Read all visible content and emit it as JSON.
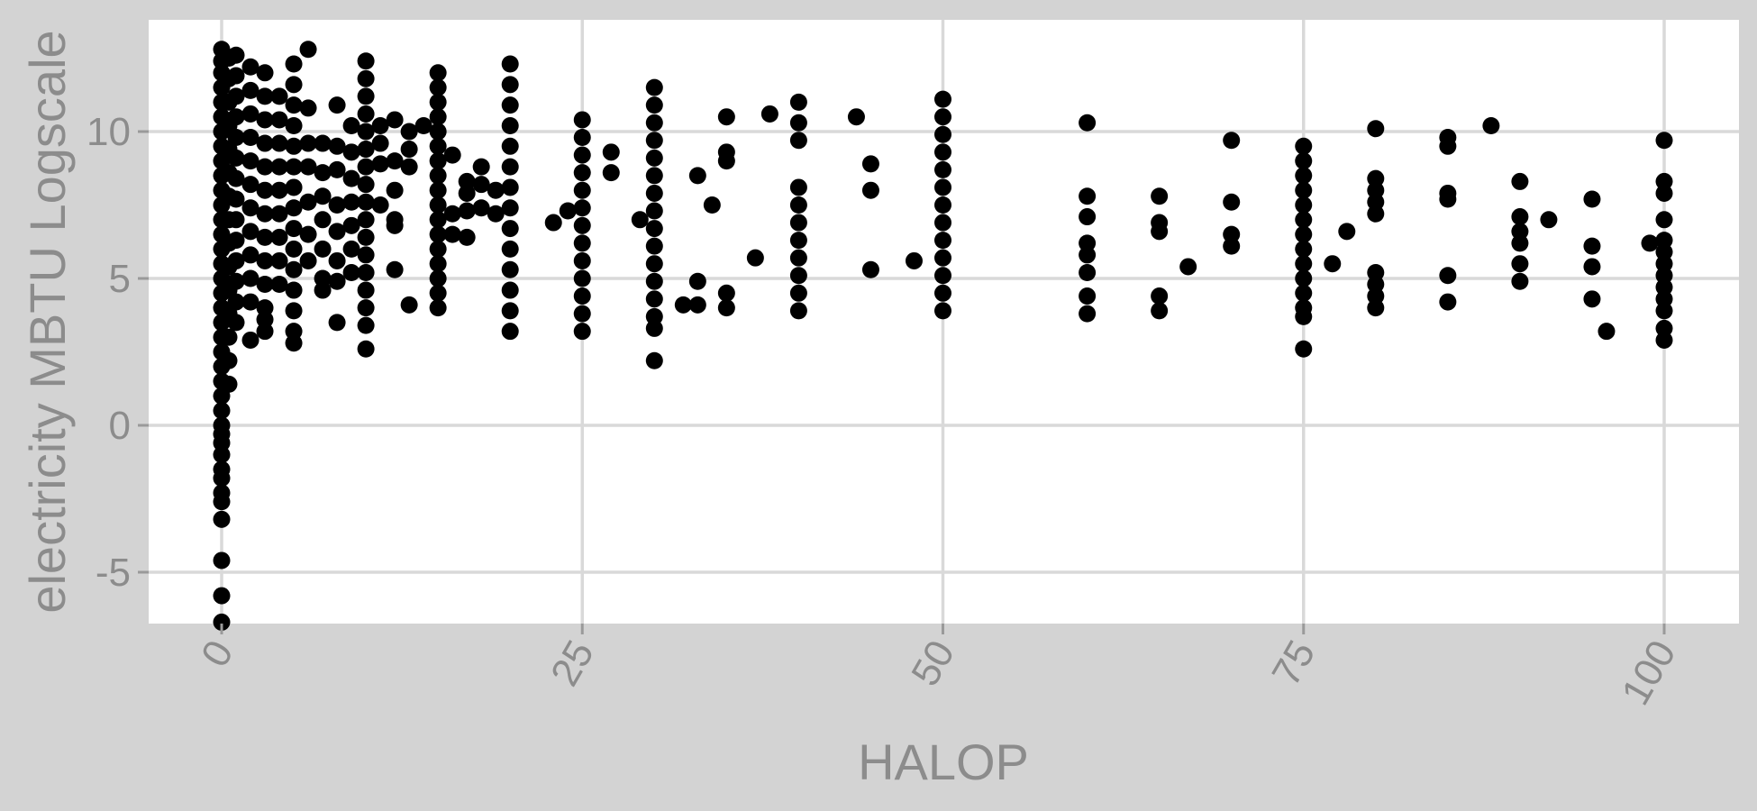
{
  "chart_data": {
    "type": "scatter",
    "title": "",
    "xlabel": "HALOP",
    "ylabel": "electricity MBTU Logscale",
    "xlim": [
      -5,
      105
    ],
    "ylim": [
      -6.8,
      13.5
    ],
    "x_ticks": [
      0,
      25,
      50,
      75,
      100
    ],
    "x_tick_labels": [
      "0",
      "25",
      "50",
      "75",
      "100"
    ],
    "y_ticks": [
      -5,
      0,
      5,
      10
    ],
    "y_tick_labels": [
      "-5",
      "0",
      "5",
      "10"
    ],
    "grid": true,
    "legend": "none",
    "colors": {
      "background": "#d3d3d3",
      "panel": "#ffffff",
      "grid": "#d9d9d9",
      "text": "#8c8c8c",
      "point": "#000000"
    },
    "points": [
      [
        0,
        12.8
      ],
      [
        0,
        12.4
      ],
      [
        0,
        12.0
      ],
      [
        0,
        11.5
      ],
      [
        0,
        11.0
      ],
      [
        0,
        10.5
      ],
      [
        0,
        10.0
      ],
      [
        0,
        9.5
      ],
      [
        0,
        9.0
      ],
      [
        0,
        8.5
      ],
      [
        0,
        8.0
      ],
      [
        0,
        7.5
      ],
      [
        0,
        7.0
      ],
      [
        0,
        6.5
      ],
      [
        0,
        6.0
      ],
      [
        0,
        5.5
      ],
      [
        0,
        5.0
      ],
      [
        0,
        4.5
      ],
      [
        0,
        4.0
      ],
      [
        0,
        3.5
      ],
      [
        0,
        3.0
      ],
      [
        0,
        2.5
      ],
      [
        0,
        2.0
      ],
      [
        0,
        1.5
      ],
      [
        0,
        1.0
      ],
      [
        0,
        0.5
      ],
      [
        0,
        0.0
      ],
      [
        0,
        -0.3
      ],
      [
        0,
        -0.6
      ],
      [
        0,
        -1.0
      ],
      [
        0,
        -1.5
      ],
      [
        0,
        -1.8
      ],
      [
        0,
        -2.3
      ],
      [
        0,
        -2.6
      ],
      [
        0,
        -3.2
      ],
      [
        0,
        -4.6
      ],
      [
        0,
        -5.8
      ],
      [
        0,
        -6.7
      ],
      [
        0.5,
        12.5
      ],
      [
        0.5,
        11.8
      ],
      [
        0.5,
        11.0
      ],
      [
        0.5,
        10.2
      ],
      [
        0.5,
        9.4
      ],
      [
        0.5,
        8.6
      ],
      [
        0.5,
        7.8
      ],
      [
        0.5,
        7.0
      ],
      [
        0.5,
        6.2
      ],
      [
        0.5,
        5.4
      ],
      [
        0.5,
        4.6
      ],
      [
        0.5,
        3.8
      ],
      [
        0.5,
        3.0
      ],
      [
        0.5,
        2.2
      ],
      [
        0.5,
        1.4
      ],
      [
        1,
        12.6
      ],
      [
        1,
        11.9
      ],
      [
        1,
        11.2
      ],
      [
        1,
        10.5
      ],
      [
        1,
        9.8
      ],
      [
        1,
        9.1
      ],
      [
        1,
        8.4
      ],
      [
        1,
        7.7
      ],
      [
        1,
        7.0
      ],
      [
        1,
        6.3
      ],
      [
        1,
        5.6
      ],
      [
        1,
        4.9
      ],
      [
        1,
        4.2
      ],
      [
        1,
        3.5
      ],
      [
        2,
        12.2
      ],
      [
        2,
        11.4
      ],
      [
        2,
        10.6
      ],
      [
        2,
        9.8
      ],
      [
        2,
        9.0
      ],
      [
        2,
        8.2
      ],
      [
        2,
        7.4
      ],
      [
        2,
        6.6
      ],
      [
        2,
        5.8
      ],
      [
        2,
        5.0
      ],
      [
        2,
        4.2
      ],
      [
        2,
        2.9
      ],
      [
        3,
        12.0
      ],
      [
        3,
        11.2
      ],
      [
        3,
        10.4
      ],
      [
        3,
        9.6
      ],
      [
        3,
        8.8
      ],
      [
        3,
        8.0
      ],
      [
        3,
        7.2
      ],
      [
        3,
        6.4
      ],
      [
        3,
        5.6
      ],
      [
        3,
        4.8
      ],
      [
        3,
        4.0
      ],
      [
        3,
        3.2
      ],
      [
        3,
        3.6
      ],
      [
        4,
        11.2
      ],
      [
        4,
        10.4
      ],
      [
        4,
        9.6
      ],
      [
        4,
        8.8
      ],
      [
        4,
        8.0
      ],
      [
        4,
        7.2
      ],
      [
        4,
        6.4
      ],
      [
        4,
        5.6
      ],
      [
        4,
        4.8
      ],
      [
        5,
        12.3
      ],
      [
        5,
        11.6
      ],
      [
        5,
        10.9
      ],
      [
        5,
        10.2
      ],
      [
        5,
        9.5
      ],
      [
        5,
        8.8
      ],
      [
        5,
        8.1
      ],
      [
        5,
        7.4
      ],
      [
        5,
        6.7
      ],
      [
        5,
        6.0
      ],
      [
        5,
        5.3
      ],
      [
        5,
        4.6
      ],
      [
        5,
        3.9
      ],
      [
        5,
        3.2
      ],
      [
        5,
        2.8
      ],
      [
        6,
        12.8
      ],
      [
        6,
        10.8
      ],
      [
        6,
        9.6
      ],
      [
        6,
        8.8
      ],
      [
        6,
        7.6
      ],
      [
        6,
        6.5
      ],
      [
        6,
        5.6
      ],
      [
        7,
        9.6
      ],
      [
        7,
        8.6
      ],
      [
        7,
        7.8
      ],
      [
        7,
        7.0
      ],
      [
        7,
        6.0
      ],
      [
        7,
        5.0
      ],
      [
        7,
        4.6
      ],
      [
        8,
        10.9
      ],
      [
        8,
        9.5
      ],
      [
        8,
        8.7
      ],
      [
        8,
        7.5
      ],
      [
        8,
        6.6
      ],
      [
        8,
        5.6
      ],
      [
        8,
        4.9
      ],
      [
        8,
        3.5
      ],
      [
        9,
        10.2
      ],
      [
        9,
        9.3
      ],
      [
        9,
        8.4
      ],
      [
        9,
        7.6
      ],
      [
        9,
        6.8
      ],
      [
        9,
        6.0
      ],
      [
        9,
        5.2
      ],
      [
        10,
        12.4
      ],
      [
        10,
        11.8
      ],
      [
        10,
        11.2
      ],
      [
        10,
        10.6
      ],
      [
        10,
        10.0
      ],
      [
        10,
        9.4
      ],
      [
        10,
        8.8
      ],
      [
        10,
        8.2
      ],
      [
        10,
        7.6
      ],
      [
        10,
        7.0
      ],
      [
        10,
        6.4
      ],
      [
        10,
        5.8
      ],
      [
        10,
        5.2
      ],
      [
        10,
        4.6
      ],
      [
        10,
        4.0
      ],
      [
        10,
        3.4
      ],
      [
        10,
        2.6
      ],
      [
        11,
        10.2
      ],
      [
        11,
        9.6
      ],
      [
        11,
        8.9
      ],
      [
        11,
        7.5
      ],
      [
        12,
        10.4
      ],
      [
        12,
        9.0
      ],
      [
        12,
        8.0
      ],
      [
        12,
        7.0
      ],
      [
        12,
        6.8
      ],
      [
        12,
        5.3
      ],
      [
        13,
        10.0
      ],
      [
        13,
        9.4
      ],
      [
        13,
        8.8
      ],
      [
        13,
        4.1
      ],
      [
        14,
        10.2
      ],
      [
        15,
        12.0
      ],
      [
        15,
        11.5
      ],
      [
        15,
        11.0
      ],
      [
        15,
        10.5
      ],
      [
        15,
        10.0
      ],
      [
        15,
        9.5
      ],
      [
        15,
        9.0
      ],
      [
        15,
        8.5
      ],
      [
        15,
        8.0
      ],
      [
        15,
        7.5
      ],
      [
        15,
        7.0
      ],
      [
        15,
        6.5
      ],
      [
        15,
        6.0
      ],
      [
        15,
        5.5
      ],
      [
        15,
        5.0
      ],
      [
        15,
        4.5
      ],
      [
        15,
        4.0
      ],
      [
        16,
        9.2
      ],
      [
        16,
        7.2
      ],
      [
        16,
        6.5
      ],
      [
        17,
        8.3
      ],
      [
        17,
        7.9
      ],
      [
        17,
        7.3
      ],
      [
        17,
        6.4
      ],
      [
        18,
        8.8
      ],
      [
        18,
        8.2
      ],
      [
        18,
        7.4
      ],
      [
        19,
        8.0
      ],
      [
        19,
        7.2
      ],
      [
        20,
        12.3
      ],
      [
        20,
        11.6
      ],
      [
        20,
        10.9
      ],
      [
        20,
        10.2
      ],
      [
        20,
        9.5
      ],
      [
        20,
        8.8
      ],
      [
        20,
        8.1
      ],
      [
        20,
        7.4
      ],
      [
        20,
        6.7
      ],
      [
        20,
        6.0
      ],
      [
        20,
        5.3
      ],
      [
        20,
        4.6
      ],
      [
        20,
        3.9
      ],
      [
        20,
        3.2
      ],
      [
        23,
        6.9
      ],
      [
        24,
        7.3
      ],
      [
        25,
        10.4
      ],
      [
        25,
        9.8
      ],
      [
        25,
        9.2
      ],
      [
        25,
        8.6
      ],
      [
        25,
        8.0
      ],
      [
        25,
        7.4
      ],
      [
        25,
        6.8
      ],
      [
        25,
        6.2
      ],
      [
        25,
        5.6
      ],
      [
        25,
        5.0
      ],
      [
        25,
        4.4
      ],
      [
        25,
        3.8
      ],
      [
        25,
        3.2
      ],
      [
        27,
        9.3
      ],
      [
        27,
        8.6
      ],
      [
        29,
        7.0
      ],
      [
        30,
        11.5
      ],
      [
        30,
        10.9
      ],
      [
        30,
        10.3
      ],
      [
        30,
        9.7
      ],
      [
        30,
        9.1
      ],
      [
        30,
        8.5
      ],
      [
        30,
        7.9
      ],
      [
        30,
        7.3
      ],
      [
        30,
        6.7
      ],
      [
        30,
        6.1
      ],
      [
        30,
        5.5
      ],
      [
        30,
        4.9
      ],
      [
        30,
        4.3
      ],
      [
        30,
        3.7
      ],
      [
        30,
        3.3
      ],
      [
        30,
        2.2
      ],
      [
        32,
        4.1
      ],
      [
        33,
        8.5
      ],
      [
        33,
        4.9
      ],
      [
        33,
        4.1
      ],
      [
        34,
        7.5
      ],
      [
        35,
        10.5
      ],
      [
        35,
        9.3
      ],
      [
        35,
        9.0
      ],
      [
        35,
        4.5
      ],
      [
        35,
        4.0
      ],
      [
        37,
        5.7
      ],
      [
        38,
        10.6
      ],
      [
        40,
        11.0
      ],
      [
        40,
        10.3
      ],
      [
        40,
        9.7
      ],
      [
        40,
        8.1
      ],
      [
        40,
        7.5
      ],
      [
        40,
        6.9
      ],
      [
        40,
        6.3
      ],
      [
        40,
        5.7
      ],
      [
        40,
        5.1
      ],
      [
        40,
        4.5
      ],
      [
        40,
        3.9
      ],
      [
        44,
        10.5
      ],
      [
        45,
        8.9
      ],
      [
        45,
        8.0
      ],
      [
        45,
        5.3
      ],
      [
        48,
        5.6
      ],
      [
        50,
        11.1
      ],
      [
        50,
        10.5
      ],
      [
        50,
        9.9
      ],
      [
        50,
        9.3
      ],
      [
        50,
        8.7
      ],
      [
        50,
        8.1
      ],
      [
        50,
        7.5
      ],
      [
        50,
        6.9
      ],
      [
        50,
        6.3
      ],
      [
        50,
        5.7
      ],
      [
        50,
        5.1
      ],
      [
        50,
        4.5
      ],
      [
        50,
        3.9
      ],
      [
        60,
        10.3
      ],
      [
        60,
        7.8
      ],
      [
        60,
        7.1
      ],
      [
        60,
        6.2
      ],
      [
        60,
        5.8
      ],
      [
        60,
        5.2
      ],
      [
        60,
        4.4
      ],
      [
        60,
        3.8
      ],
      [
        65,
        7.8
      ],
      [
        65,
        6.9
      ],
      [
        65,
        6.6
      ],
      [
        65,
        4.4
      ],
      [
        65,
        3.9
      ],
      [
        67,
        5.4
      ],
      [
        70,
        9.7
      ],
      [
        70,
        7.6
      ],
      [
        70,
        6.5
      ],
      [
        70,
        6.1
      ],
      [
        75,
        9.5
      ],
      [
        75,
        9.0
      ],
      [
        75,
        8.5
      ],
      [
        75,
        8.0
      ],
      [
        75,
        7.5
      ],
      [
        75,
        7.0
      ],
      [
        75,
        6.5
      ],
      [
        75,
        6.0
      ],
      [
        75,
        5.5
      ],
      [
        75,
        5.0
      ],
      [
        75,
        4.5
      ],
      [
        75,
        4.0
      ],
      [
        75,
        3.7
      ],
      [
        75,
        2.6
      ],
      [
        77,
        5.5
      ],
      [
        78,
        6.6
      ],
      [
        80,
        10.1
      ],
      [
        80,
        8.4
      ],
      [
        80,
        8.0
      ],
      [
        80,
        7.6
      ],
      [
        80,
        7.2
      ],
      [
        80,
        5.2
      ],
      [
        80,
        4.8
      ],
      [
        80,
        4.4
      ],
      [
        80,
        4.0
      ],
      [
        85,
        9.8
      ],
      [
        85,
        9.5
      ],
      [
        85,
        7.9
      ],
      [
        85,
        7.7
      ],
      [
        85,
        5.1
      ],
      [
        85,
        4.2
      ],
      [
        88,
        10.2
      ],
      [
        90,
        8.3
      ],
      [
        90,
        7.1
      ],
      [
        90,
        6.6
      ],
      [
        90,
        6.2
      ],
      [
        90,
        5.5
      ],
      [
        90,
        4.9
      ],
      [
        92,
        7.0
      ],
      [
        95,
        7.7
      ],
      [
        95,
        6.1
      ],
      [
        95,
        5.4
      ],
      [
        95,
        4.3
      ],
      [
        96,
        3.2
      ],
      [
        99,
        6.2
      ],
      [
        100,
        9.7
      ],
      [
        100,
        8.3
      ],
      [
        100,
        7.9
      ],
      [
        100,
        7.0
      ],
      [
        100,
        6.3
      ],
      [
        100,
        5.9
      ],
      [
        100,
        5.5
      ],
      [
        100,
        5.1
      ],
      [
        100,
        4.7
      ],
      [
        100,
        4.3
      ],
      [
        100,
        3.9
      ],
      [
        100,
        3.3
      ],
      [
        100,
        2.9
      ]
    ]
  }
}
